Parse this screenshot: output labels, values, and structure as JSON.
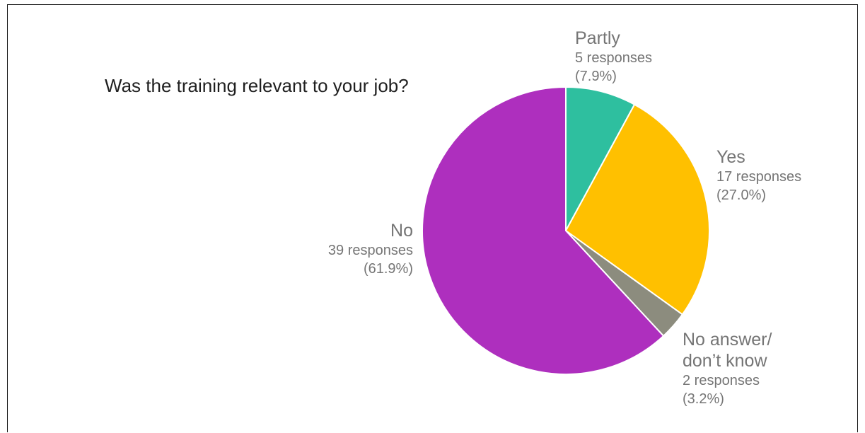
{
  "chart_data": {
    "type": "pie",
    "title": "Was the training relevant to your job?",
    "slices": [
      {
        "label": "Partly",
        "lines": [
          "Partly"
        ],
        "count_text": "5 responses",
        "pct_text": "(7.9%)",
        "value": 5,
        "percent": 7.9,
        "color": "#2ebf9f"
      },
      {
        "label": "Yes",
        "lines": [
          "Yes"
        ],
        "count_text": "17 responses",
        "pct_text": "(27.0%)",
        "value": 17,
        "percent": 27.0,
        "color": "#ffc000"
      },
      {
        "label": "No answer/ don’t know",
        "lines": [
          "No answer/",
          "don’t know"
        ],
        "count_text": "2 responses",
        "pct_text": "(3.2%)",
        "value": 2,
        "percent": 3.2,
        "color": "#8c8c7e"
      },
      {
        "label": "No",
        "lines": [
          "No"
        ],
        "count_text": "39 responses",
        "pct_text": "(61.9%)",
        "value": 39,
        "percent": 61.9,
        "color": "#ae2fbe"
      }
    ],
    "start_angle_deg": 0,
    "direction": "clockwise"
  }
}
